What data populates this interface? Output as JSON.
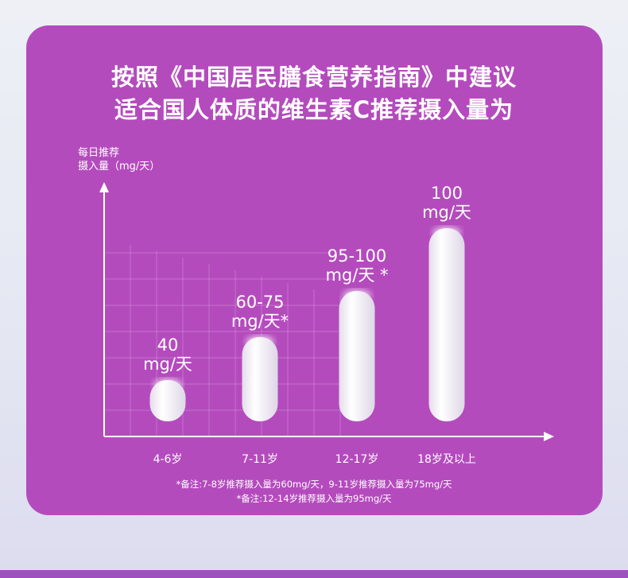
{
  "header": {
    "title_line1": "按照《中国居民膳食营养指南》中建议",
    "title_line2": "适合国人体质的维生素C推荐摄入量为"
  },
  "colors": {
    "card": "#b44bbd",
    "pill": "#f4f1f7",
    "axis": "#ffffff"
  },
  "chart_data": {
    "type": "bar",
    "ylabel_line1": "每日推荐",
    "ylabel_line2": "摄入量（mg/天）",
    "categories": [
      "4-6岁",
      "7-11岁",
      "12-17岁",
      "18岁及以上"
    ],
    "series": [
      {
        "low": [
          40,
          60,
          95,
          100
        ],
        "high": [
          40,
          75,
          100,
          100
        ]
      }
    ],
    "value_labels": [
      {
        "line1": "40",
        "line2": "mg/天"
      },
      {
        "line1": "60-75",
        "line2": "mg/天*"
      },
      {
        "line1": "95-100",
        "line2": "mg/天 *"
      },
      {
        "line1": "100",
        "line2": "mg/天"
      }
    ],
    "grid": true
  },
  "notes": [
    "*备注:7-8岁推荐摄入量为60mg/天，9-11岁推荐摄入量为75mg/天",
    "*备注:12-14岁推荐摄入量为95mg/天"
  ]
}
